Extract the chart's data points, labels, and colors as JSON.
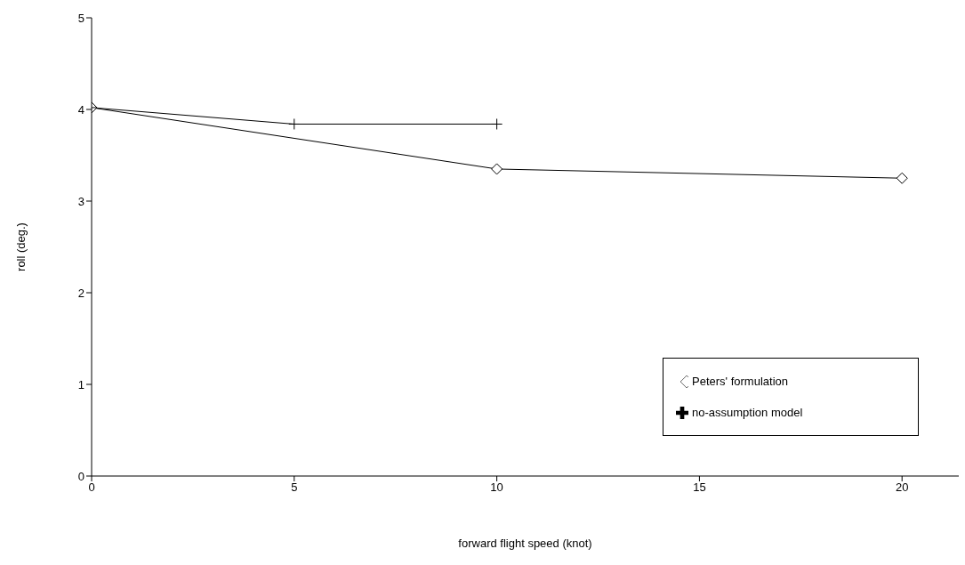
{
  "chart_data": {
    "type": "line",
    "xlabel": "forward flight speed (knot)",
    "ylabel": "roll (deg.)",
    "xlim": [
      0,
      21.4
    ],
    "xticks": [
      0,
      5,
      10,
      15,
      20
    ],
    "ylim": [
      0,
      5
    ],
    "yticks": [
      0,
      1,
      2,
      3,
      4,
      5
    ],
    "grid": false,
    "legend": "bottom right",
    "series": [
      {
        "name": "Peters' formulation",
        "color": "#000000",
        "marker": "diamond",
        "x": [
          0,
          10,
          20
        ],
        "values": [
          4.02,
          3.35,
          3.25
        ]
      },
      {
        "name": "no-assumption model",
        "color": "#000000",
        "marker": "cross",
        "x": [
          0,
          5,
          10
        ],
        "values": [
          4.02,
          3.84,
          3.84
        ]
      }
    ]
  }
}
